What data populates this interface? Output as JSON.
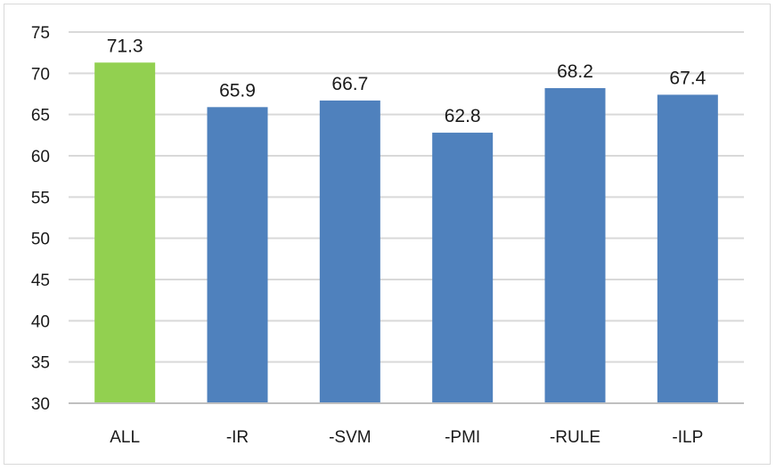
{
  "chart_data": {
    "type": "bar",
    "title": "",
    "xlabel": "",
    "ylabel": "",
    "categories": [
      "ALL",
      "-IR",
      "-SVM",
      "-PMI",
      "-RULE",
      "-ILP"
    ],
    "values": [
      71.3,
      65.9,
      66.7,
      62.8,
      68.2,
      67.4
    ],
    "data_labels": [
      "71.3",
      "65.9",
      "66.7",
      "62.8",
      "68.2",
      "67.4"
    ],
    "ylim": [
      30,
      75
    ],
    "yticks": [
      30,
      35,
      40,
      45,
      50,
      55,
      60,
      65,
      70,
      75
    ],
    "ytick_labels": [
      "30",
      "35",
      "40",
      "45",
      "50",
      "55",
      "60",
      "65",
      "70",
      "75"
    ],
    "grid": true,
    "legend": "none",
    "colors": {
      "highlight": "#92d050",
      "default": "#4f81bd",
      "grid": "#d9d9d9",
      "axis": "#bfbfbf"
    },
    "highlight_category": "ALL"
  }
}
